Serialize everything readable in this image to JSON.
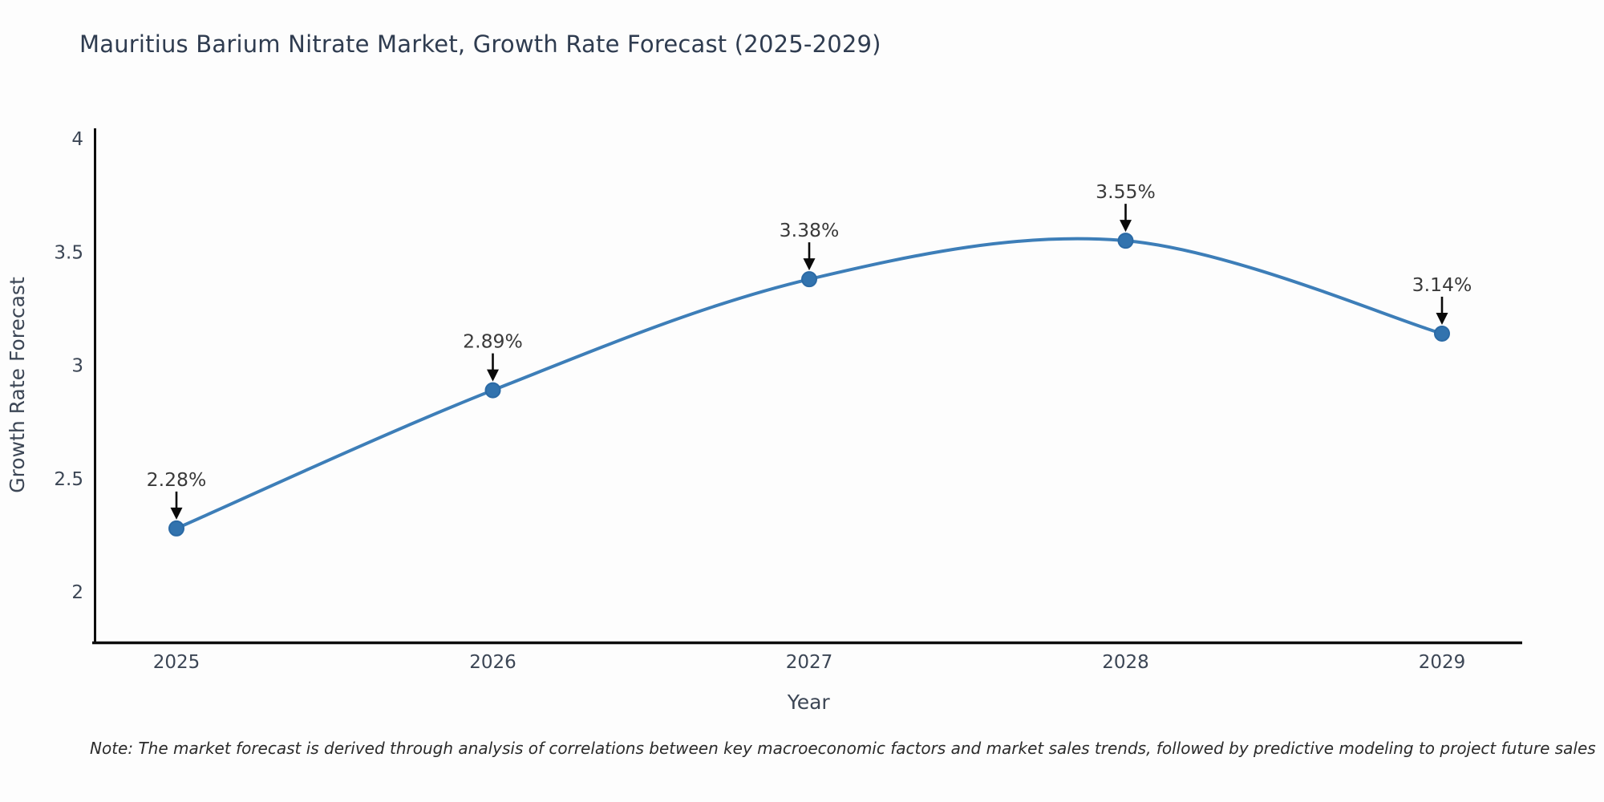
{
  "chart_data": {
    "type": "line",
    "title": "Mauritius Barium Nitrate Market, Growth Rate Forecast (2025-2029)",
    "xlabel": "Year",
    "ylabel": "Growth Rate Forecast",
    "x": [
      2025,
      2026,
      2027,
      2028,
      2029
    ],
    "x_tick_labels": [
      "2025",
      "2026",
      "2027",
      "2028",
      "2029"
    ],
    "series": [
      {
        "name": "Growth Rate Forecast",
        "values": [
          2.28,
          2.89,
          3.38,
          3.55,
          3.14
        ]
      }
    ],
    "values": [
      2.28,
      2.89,
      3.38,
      3.55,
      3.14
    ],
    "point_labels": [
      "2.28%",
      "2.89%",
      "3.38%",
      "3.55%",
      "3.14%"
    ],
    "y_tick_values": [
      4,
      3.5,
      3,
      2.5,
      2
    ],
    "y_tick_labels": [
      "4",
      "3.5",
      "3",
      "2.5",
      "2"
    ],
    "ylim": [
      1.78,
      4.05
    ],
    "xlim": [
      2024.74,
      2029.26
    ],
    "grid": false,
    "legend": "none",
    "marker": "circle",
    "line_color": "#3d7eb8",
    "marker_fill": "#3273ae",
    "marker_edge": "#2b6aa5",
    "annotation_color": "#3a3a3a",
    "arrow_color": "#0a0a0a",
    "axis_color": "#0d0d0d",
    "tick_color": "#3c4655",
    "title_color": "#2f3c50"
  },
  "note": {
    "text": "Note: The market forecast is derived through analysis of correlations between key macroeconomic factors and market sales trends, followed by predictive modeling to project future sales"
  }
}
